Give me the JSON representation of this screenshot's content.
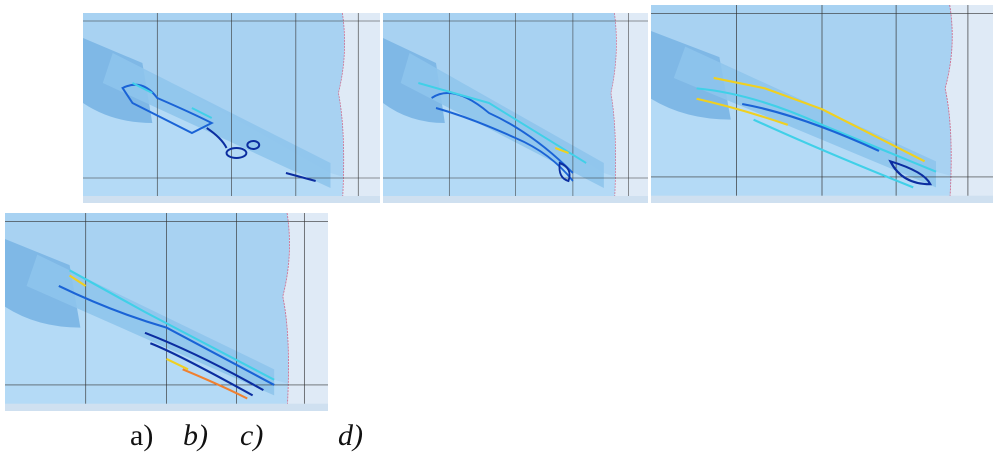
{
  "labels": [
    "a)",
    "b)",
    "c)",
    "d)"
  ]
}
